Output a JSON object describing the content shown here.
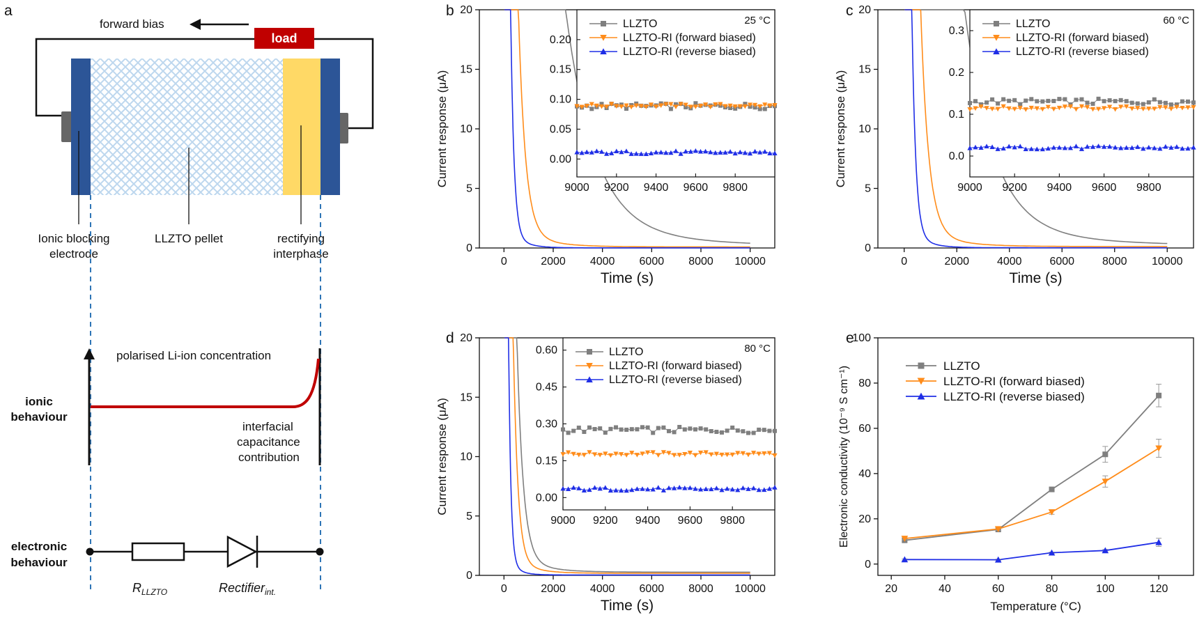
{
  "panel_letters": {
    "a": "a",
    "b": "b",
    "c": "c",
    "d": "d",
    "e": "e"
  },
  "schematic": {
    "forward_bias": "forward bias",
    "load": "load",
    "ionic_blocking": "Ionic blocking",
    "electrode": "electrode",
    "pellet": "LLZTO pellet",
    "rectifying": "rectifying",
    "interphase": "interphase",
    "polarised": "polarised Li-ion concentration",
    "ionic": "ionic",
    "behaviour": "behaviour",
    "electronic": "electronic",
    "interfacial": "interfacial",
    "capacitance": "capacitance",
    "contribution": "contribution",
    "r_main": "R",
    "r_sub": "LLZTO",
    "rect_main": "Rectifier",
    "rect_sub": "int.",
    "colors": {
      "electrode": "#2c5597",
      "interphase": "#ffd966",
      "pellet": "#bdd7ee",
      "load": "#c00000",
      "red_line": "#c00000",
      "dashed": "#2e75b6"
    }
  },
  "series_names": [
    "LLZTO",
    "LLZTO-RI (forward biased)",
    "LLZTO-RI (reverse biased)"
  ],
  "series_colors": [
    "#7f7f7f",
    "#ff8c1a",
    "#1f2ee6"
  ],
  "time_axis": {
    "xlabel": "Time (s)",
    "ylabel": "Current response (μA)"
  },
  "chart_data": [
    {
      "id": "b",
      "type": "line",
      "temperature": "25 °C",
      "xlim": [
        -1000,
        11000
      ],
      "ylim": [
        0,
        20
      ],
      "xticks": [
        "0",
        "2000",
        "4000",
        "6000",
        "8000",
        "10000"
      ],
      "yticks": [
        "0",
        "5",
        "10",
        "15",
        "20"
      ],
      "series": [
        {
          "name": "LLZTO",
          "tau": 1200,
          "plateau": 0.09
        },
        {
          "name": "LLZTO-RI (forward biased)",
          "tau": 280,
          "plateau": 0.09
        },
        {
          "name": "LLZTO-RI (reverse biased)",
          "tau": 130,
          "plateau": 0.01
        }
      ],
      "inset": {
        "xlim": [
          9000,
          10000
        ],
        "ylim": [
          -0.03,
          0.25
        ],
        "xticks": [
          "9000",
          "9200",
          "9400",
          "9600",
          "9800"
        ],
        "yticks": [
          "0.00",
          "0.05",
          "0.10",
          "0.15",
          "0.20"
        ],
        "levels": [
          0.0885,
          0.0895,
          0.011
        ]
      }
    },
    {
      "id": "c",
      "type": "line",
      "temperature": "60 °C",
      "xlim": [
        -1000,
        11000
      ],
      "ylim": [
        0,
        20
      ],
      "xticks": [
        "0",
        "2000",
        "4000",
        "6000",
        "8000",
        "10000"
      ],
      "yticks": [
        "0",
        "5",
        "10",
        "15",
        "20"
      ],
      "series": [
        {
          "name": "LLZTO",
          "tau": 1100,
          "plateau": 0.13
        },
        {
          "name": "LLZTO-RI (forward biased)",
          "tau": 300,
          "plateau": 0.12
        },
        {
          "name": "LLZTO-RI (reverse biased)",
          "tau": 140,
          "plateau": 0.02
        }
      ],
      "inset": {
        "xlim": [
          9000,
          10000
        ],
        "ylim": [
          -0.05,
          0.35
        ],
        "xticks": [
          "9000",
          "9200",
          "9400",
          "9600",
          "9800"
        ],
        "yticks": [
          "0.0",
          "0.1",
          "0.2",
          "0.3"
        ],
        "levels": [
          0.13,
          0.115,
          0.02
        ]
      }
    },
    {
      "id": "d",
      "type": "line",
      "temperature": "80 °C",
      "xlim": [
        -1000,
        11000
      ],
      "ylim": [
        0,
        20
      ],
      "xticks": [
        "0",
        "2000",
        "4000",
        "6000",
        "8000",
        "10000"
      ],
      "yticks": [
        "0",
        "5",
        "10",
        "15",
        "20"
      ],
      "series": [
        {
          "name": "LLZTO",
          "tau": 250,
          "plateau": 0.27
        },
        {
          "name": "LLZTO-RI (forward biased)",
          "tau": 180,
          "plateau": 0.18
        },
        {
          "name": "LLZTO-RI (reverse biased)",
          "tau": 90,
          "plateau": 0.035
        }
      ],
      "inset": {
        "xlim": [
          9000,
          10000
        ],
        "ylim": [
          -0.05,
          0.65
        ],
        "xticks": [
          "9000",
          "9200",
          "9400",
          "9600",
          "9800"
        ],
        "yticks": [
          "0.00",
          "0.15",
          "0.30",
          "0.45",
          "0.60"
        ],
        "levels": [
          0.275,
          0.178,
          0.035
        ]
      }
    },
    {
      "id": "e",
      "type": "line",
      "xlabel": "Temperature (°C)",
      "ylabel": "Electronic conductivity (10⁻⁹ S cm⁻¹)",
      "xlim": [
        15,
        133
      ],
      "ylim": [
        -5,
        100
      ],
      "xticks": [
        "20",
        "40",
        "60",
        "80",
        "100",
        "120"
      ],
      "yticks": [
        "0",
        "20",
        "40",
        "60",
        "80",
        "100"
      ],
      "x": [
        25,
        60,
        80,
        100,
        120
      ],
      "series": [
        {
          "name": "LLZTO",
          "values": [
            10.5,
            15.3,
            33.0,
            48.5,
            74.5
          ],
          "err": [
            0.8,
            0.8,
            1.0,
            3.5,
            5.0
          ]
        },
        {
          "name": "LLZTO-RI (forward biased)",
          "values": [
            11.3,
            15.5,
            23.0,
            36.5,
            51.2
          ],
          "err": [
            0.6,
            0.6,
            1.0,
            2.5,
            4.0
          ]
        },
        {
          "name": "LLZTO-RI (reverse biased)",
          "values": [
            2.0,
            1.9,
            5.0,
            6.0,
            9.6
          ],
          "err": [
            0.3,
            0.3,
            0.3,
            0.5,
            1.8
          ]
        }
      ]
    }
  ]
}
